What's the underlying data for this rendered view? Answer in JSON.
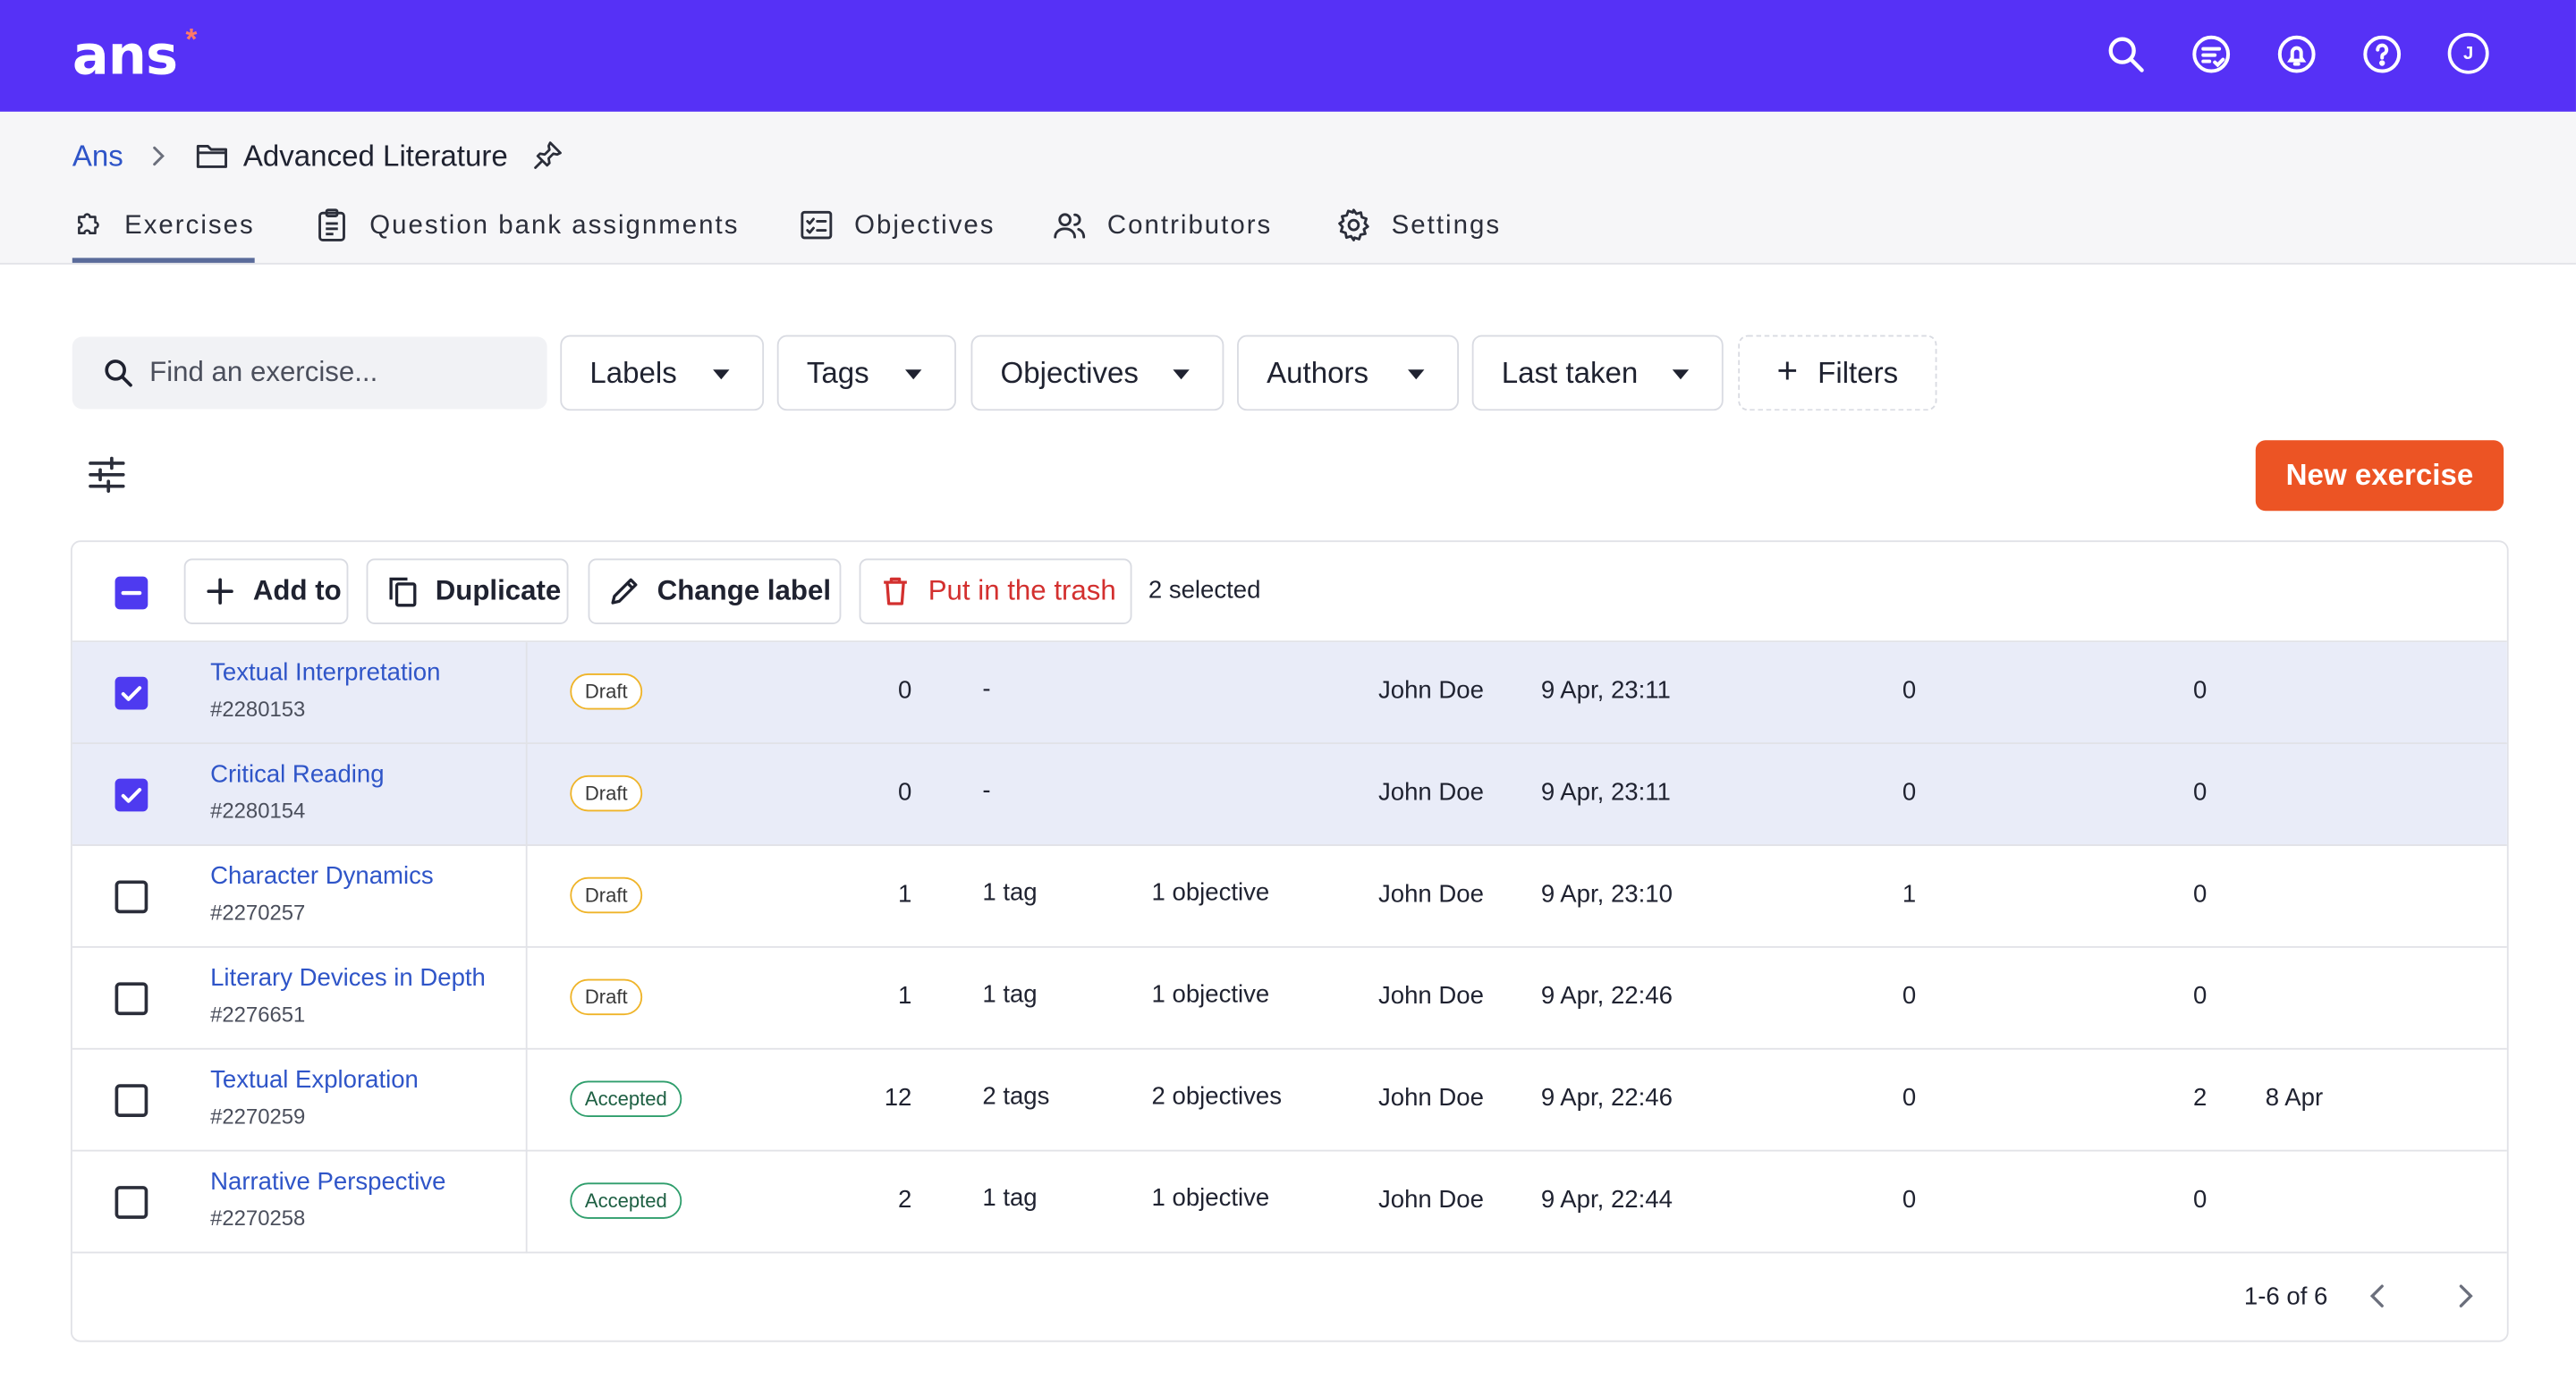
{
  "app": {
    "logo": "ans",
    "logo_mark": "*",
    "user_initial": "J"
  },
  "topbar_icons": [
    "search-icon",
    "chat-list-icon",
    "notification-bell-icon",
    "help-icon",
    "user-avatar-icon"
  ],
  "breadcrumb": {
    "root": "Ans",
    "current": "Advanced Literature"
  },
  "tabs": [
    {
      "label": "Exercises",
      "icon": "puzzle-icon",
      "active": true
    },
    {
      "label": "Question bank assignments",
      "icon": "clipboard-icon",
      "active": false
    },
    {
      "label": "Objectives",
      "icon": "checklist-icon",
      "active": false
    },
    {
      "label": "Contributors",
      "icon": "people-icon",
      "active": false
    },
    {
      "label": "Settings",
      "icon": "gear-icon",
      "active": false
    }
  ],
  "search": {
    "placeholder": "Find an exercise..."
  },
  "filters": {
    "labels": "Labels",
    "tags": "Tags",
    "objectives": "Objectives",
    "authors": "Authors",
    "last_taken": "Last taken",
    "more": "Filters"
  },
  "new_exercise_label": "New exercise",
  "actions": {
    "add_to": "Add to",
    "duplicate": "Duplicate",
    "change_label": "Change label",
    "trash": "Put in the trash",
    "selected_count": "2 selected"
  },
  "colors": {
    "brand": "#5631f6",
    "primary_action": "#ec5424",
    "danger": "#d3302f",
    "link": "#2f55c8",
    "selected_row": "#e9ecf8"
  },
  "rows": [
    {
      "name": "Textual Interpretation",
      "id": "#2280153",
      "status": "Draft",
      "questions": "0",
      "tags": "-",
      "objectives": "",
      "author": "John Doe",
      "updated": "9 Apr, 23:11",
      "col_a": "0",
      "col_b": "0",
      "last_taken": "",
      "selected": true
    },
    {
      "name": "Critical Reading",
      "id": "#2280154",
      "status": "Draft",
      "questions": "0",
      "tags": "-",
      "objectives": "",
      "author": "John Doe",
      "updated": "9 Apr, 23:11",
      "col_a": "0",
      "col_b": "0",
      "last_taken": "",
      "selected": true
    },
    {
      "name": "Character Dynamics",
      "id": "#2270257",
      "status": "Draft",
      "questions": "1",
      "tags": "1 tag",
      "objectives": "1 objective",
      "author": "John Doe",
      "updated": "9 Apr, 23:10",
      "col_a": "1",
      "col_b": "0",
      "last_taken": "",
      "selected": false
    },
    {
      "name": "Literary Devices in Depth",
      "id": "#2276651",
      "status": "Draft",
      "questions": "1",
      "tags": "1 tag",
      "objectives": "1 objective",
      "author": "John Doe",
      "updated": "9 Apr, 22:46",
      "col_a": "0",
      "col_b": "0",
      "last_taken": "",
      "selected": false
    },
    {
      "name": "Textual Exploration",
      "id": "#2270259",
      "status": "Accepted",
      "questions": "12",
      "tags": "2 tags",
      "objectives": "2 objectives",
      "author": "John Doe",
      "updated": "9 Apr, 22:46",
      "col_a": "0",
      "col_b": "2",
      "last_taken": "8 Apr",
      "selected": false
    },
    {
      "name": "Narrative Perspective",
      "id": "#2270258",
      "status": "Accepted",
      "questions": "2",
      "tags": "1 tag",
      "objectives": "1 objective",
      "author": "John Doe",
      "updated": "9 Apr, 22:44",
      "col_a": "0",
      "col_b": "0",
      "last_taken": "",
      "selected": false
    }
  ],
  "pagination": {
    "range": "1-6 of 6"
  }
}
